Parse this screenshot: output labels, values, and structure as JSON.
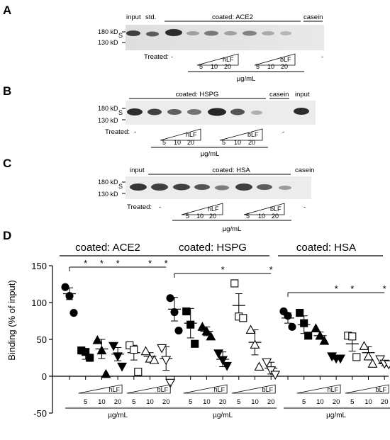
{
  "panels": {
    "A": {
      "letter": "A",
      "lanes_top": [
        "input",
        "std.",
        "casein"
      ],
      "coated": "coated: ACE2",
      "markers": [
        "180 kD",
        "S",
        "130 kD"
      ],
      "treated": "Treated:",
      "dash": "-",
      "hlf": "hLF",
      "blf": "bLF",
      "conc": [
        "5",
        "10",
        "20"
      ],
      "unit": "µg/mL"
    },
    "B": {
      "letter": "B",
      "coated": "coated: HSPG",
      "casein": "casein",
      "input": "input",
      "markers": [
        "180 kD",
        "S",
        "130 kD"
      ],
      "treated": "Treated:",
      "dash": "-",
      "hlf": "hLF",
      "blf": "bLF",
      "conc": [
        "5",
        "10",
        "20"
      ],
      "unit": "µg/mL"
    },
    "C": {
      "letter": "C",
      "input": "input",
      "coated": "coated: HSA",
      "casein": "casein",
      "markers": [
        "180 kD",
        "S",
        "130 kD"
      ],
      "treated": "Treated:",
      "dash": "-",
      "hlf": "hLF",
      "blf": "bLF",
      "conc": [
        "5",
        "10",
        "20"
      ],
      "unit": "µg/mL"
    },
    "D": {
      "letter": "D",
      "star": "*",
      "hlf": "hLF",
      "blf": "bLF",
      "conc": [
        "5",
        "10",
        "20"
      ],
      "unit": "µg/mL"
    }
  },
  "chart_data": {
    "type": "scatter",
    "ylabel": "Binding (% of input)",
    "ylim": [
      -50,
      150
    ],
    "yticks": [
      "150",
      "100",
      "50",
      "0",
      "-50"
    ],
    "groups": [
      {
        "title": "coated: ACE2",
        "lanes": [
          {
            "label": "-",
            "mean": 112,
            "sd": 8,
            "points": [
              121,
              109,
              86
            ]
          },
          {
            "label": "hLF 5",
            "mean": 30,
            "sd": 7,
            "points": [
              35,
              33,
              25
            ]
          },
          {
            "label": "hLF 10",
            "mean": 37,
            "sd": 13,
            "points": [
              49,
              35,
              3
            ]
          },
          {
            "label": "hLF 20",
            "mean": 30,
            "sd": 9,
            "points": [
              41,
              27,
              13
            ]
          },
          {
            "label": "bLF 5",
            "mean": 32,
            "sd": 10,
            "points": [
              42,
              36,
              6
            ]
          },
          {
            "label": "bLF 10",
            "mean": 27,
            "sd": 5,
            "points": [
              34,
              24,
              22
            ]
          },
          {
            "label": "bLF 20",
            "mean": 24,
            "sd": 16,
            "points": [
              38,
              22,
              -9
            ]
          }
        ],
        "sig": [
          1,
          2,
          3,
          5,
          6
        ]
      },
      {
        "title": "coated: HSPG",
        "lanes": [
          {
            "label": "-",
            "mean": 91,
            "sd": 16,
            "points": [
              106,
              87,
              62
            ]
          },
          {
            "label": "hLF 5",
            "mean": 72,
            "sd": 20,
            "points": [
              88,
              70,
              44
            ]
          },
          {
            "label": "hLF 10",
            "mean": 61,
            "sd": 6,
            "points": [
              67,
              61,
              54
            ]
          },
          {
            "label": "hLF 20",
            "mean": 23,
            "sd": 10,
            "points": [
              31,
              22,
              14
            ]
          },
          {
            "label": "bLF 5",
            "mean": 96,
            "sd": 16,
            "points": [
              126,
              81,
              79
            ]
          },
          {
            "label": "bLF 10",
            "mean": 46,
            "sd": 17,
            "points": [
              63,
              43,
              13
            ]
          },
          {
            "label": "bLF 20",
            "mean": 11,
            "sd": 8,
            "points": [
              19,
              8,
              2
            ]
          }
        ],
        "sig": [
          3,
          6
        ]
      },
      {
        "title": "coated: HSA",
        "lanes": [
          {
            "label": "-",
            "mean": 79,
            "sd": 7,
            "points": [
              88,
              82,
              67
            ]
          },
          {
            "label": "hLF 5",
            "mean": 70,
            "sd": 12,
            "points": [
              86,
              72,
              55
            ]
          },
          {
            "label": "hLF 10",
            "mean": 55,
            "sd": 5,
            "points": [
              65,
              55,
              48
            ]
          },
          {
            "label": "hLF 20",
            "mean": 25,
            "sd": 2,
            "points": [
              27,
              24,
              24
            ]
          },
          {
            "label": "bLF 5",
            "mean": 44,
            "sd": 10,
            "points": [
              55,
              54,
              26
            ]
          },
          {
            "label": "bLF 10",
            "mean": 32,
            "sd": 8,
            "points": [
              41,
              27,
              17
            ]
          },
          {
            "label": "bLF 20",
            "mean": 17,
            "sd": 3,
            "points": [
              23,
              17,
              16
            ]
          }
        ],
        "sig": [
          3,
          4,
          6
        ]
      }
    ],
    "markers": [
      "filled-circle",
      "filled-square",
      "filled-triangle",
      "filled-down-triangle",
      "open-square",
      "open-triangle",
      "open-down-triangle"
    ]
  }
}
